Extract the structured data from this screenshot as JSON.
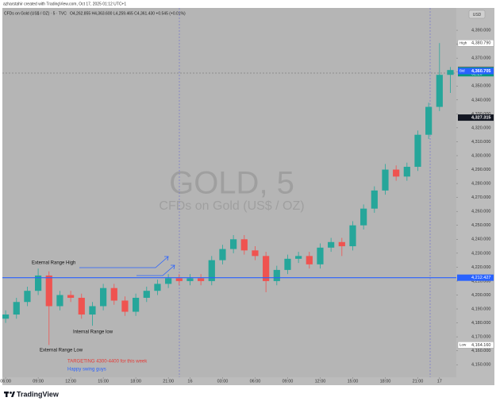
{
  "header": "azharstahir created with TradingView.com, Oct 17, 2025 01:12 UTC+1",
  "currency": "USD",
  "brand": "TradingView",
  "chart_data": {
    "type": "candlestick",
    "legend_title": "CFDs on Gold (US$ / OZ) · 5 · TVC",
    "legend_ohlc": "O4,262.855 H4,363.600 L4,259.465 C4,361.430 +0.545 (+0.01%)",
    "watermark": "GOLD, 5",
    "watermark_subtitle": "CFDs on Gold (US$ / OZ)",
    "up_color": "#26a69a",
    "down_color": "#ef5350",
    "x": [
      -3,
      -2,
      -1,
      0,
      1,
      2,
      3,
      4,
      5,
      6,
      7,
      8,
      9,
      10,
      11,
      12,
      13,
      14,
      15,
      16,
      17,
      18,
      19,
      20,
      21,
      22,
      23,
      24,
      25,
      26,
      27,
      28,
      29,
      30,
      31,
      32,
      33,
      34,
      35,
      36,
      37,
      38
    ],
    "open": [
      4183,
      4186,
      4195,
      4203,
      4214,
      4192,
      4200,
      4198,
      4186,
      4192,
      4205,
      4196,
      4188,
      4198,
      4203,
      4208,
      4212,
      4210,
      4212,
      4210,
      4225,
      4233,
      4240,
      4232,
      4228,
      4210,
      4218,
      4226,
      4228,
      4222,
      4234,
      4238,
      4235,
      4250,
      4262,
      4275,
      4290,
      4285,
      4292,
      4315,
      4335,
      4358
    ],
    "high": [
      4189,
      4198,
      4206,
      4219,
      4217,
      4203,
      4203,
      4201,
      4195,
      4208,
      4208,
      4199,
      4201,
      4206,
      4211,
      4215,
      4215,
      4215,
      4215,
      4228,
      4236,
      4243,
      4243,
      4235,
      4231,
      4221,
      4229,
      4231,
      4231,
      4237,
      4241,
      4241,
      4253,
      4265,
      4278,
      4294,
      4293,
      4295,
      4318,
      4338,
      4380.79,
      4363.6
    ],
    "low": [
      4180,
      4183,
      4192,
      4200,
      4164.16,
      4189,
      4195,
      4183,
      4178,
      4189,
      4193,
      4185,
      4185,
      4195,
      4200,
      4205,
      4207,
      4207,
      4207,
      4207,
      4222,
      4230,
      4229,
      4225,
      4202,
      4207,
      4215,
      4223,
      4219,
      4219,
      4231,
      4228,
      4232,
      4247,
      4259,
      4272,
      4282,
      4282,
      4289,
      4312,
      4332,
      4345
    ],
    "close": [
      4186,
      4195,
      4203,
      4214,
      4192,
      4200,
      4198,
      4186,
      4192,
      4205,
      4196,
      4188,
      4198,
      4203,
      4208,
      4212,
      4210,
      4212,
      4210,
      4225,
      4233,
      4240,
      4232,
      4228,
      4210,
      4218,
      4226,
      4228,
      4222,
      4234,
      4238,
      4235,
      4250,
      4262,
      4275,
      4290,
      4285,
      4292,
      4315,
      4335,
      4358,
      4361.43
    ],
    "xlim": [
      -3.3,
      38.55
    ],
    "ylim": [
      4141,
      4406
    ],
    "xticks": [
      {
        "value": -3,
        "label": "06:00"
      },
      {
        "value": 0,
        "label": "09:00"
      },
      {
        "value": 3,
        "label": "12:00"
      },
      {
        "value": 6,
        "label": "15:00"
      },
      {
        "value": 9,
        "label": "18:00"
      },
      {
        "value": 12,
        "label": "21:00"
      },
      {
        "value": 14,
        "label": "16"
      },
      {
        "value": 17,
        "label": "03:00"
      },
      {
        "value": 20,
        "label": "06:00"
      },
      {
        "value": 23,
        "label": "09:00"
      },
      {
        "value": 26,
        "label": "12:00"
      },
      {
        "value": 29,
        "label": "15:00"
      },
      {
        "value": 32,
        "label": "18:00"
      },
      {
        "value": 35,
        "label": "21:00"
      },
      {
        "value": 37,
        "label": "17"
      }
    ],
    "yticks": [
      {
        "value": 4150,
        "label": "4,150.000"
      },
      {
        "value": 4160,
        "label": "4,160.000"
      },
      {
        "value": 4170,
        "label": "4,170.000"
      },
      {
        "value": 4180,
        "label": "4,180.000"
      },
      {
        "value": 4190,
        "label": "4,190.000"
      },
      {
        "value": 4200,
        "label": "4,200.000"
      },
      {
        "value": 4210,
        "label": "4,210.000"
      },
      {
        "value": 4220,
        "label": "4,220.000"
      },
      {
        "value": 4230,
        "label": "4,230.000"
      },
      {
        "value": 4240,
        "label": "4,240.000"
      },
      {
        "value": 4250,
        "label": "4,250.000"
      },
      {
        "value": 4260,
        "label": "4,260.000"
      },
      {
        "value": 4270,
        "label": "4,270.000"
      },
      {
        "value": 4280,
        "label": "4,280.000"
      },
      {
        "value": 4290,
        "label": "4,290.000"
      },
      {
        "value": 4300,
        "label": "4,300.000"
      },
      {
        "value": 4310,
        "label": "4,310.000"
      },
      {
        "value": 4320,
        "label": "4,320.000"
      },
      {
        "value": 4330,
        "label": "4,330.000"
      },
      {
        "value": 4340,
        "label": "4,340.000"
      },
      {
        "value": 4350,
        "label": "4,350.000"
      },
      {
        "value": 4360,
        "label": "4,360.000"
      },
      {
        "value": 4370,
        "label": "4,370.000"
      },
      {
        "value": 4380,
        "label": "4,380.000"
      },
      {
        "value": 4390,
        "label": "4,390.000"
      }
    ],
    "horizontal_line": {
      "value": 4212.427,
      "label": "4,212.427",
      "color": "#2962ff"
    },
    "markers": [
      {
        "name": "High",
        "value": 4380.79,
        "label": "4,380.790",
        "color": "#ffffff"
      },
      {
        "name": "Ask",
        "value": 4361.635,
        "label": "4,361.635",
        "color": "#f23645"
      },
      {
        "name": "GOLD",
        "value": 4361.43,
        "label": "4,361.430",
        "color": "#089981",
        "countdown": "02:29"
      },
      {
        "name": "Bid",
        "value": 4360.705,
        "label": "4,360.705",
        "color": "#2962ff"
      },
      {
        "value": 4327.315,
        "label": "4,327.315",
        "color": "#131722"
      },
      {
        "name": "Low",
        "value": 4164.16,
        "label": "4,164.160",
        "color": "#ffffff"
      }
    ],
    "annotations": [
      "External Range High",
      "Internal Range low",
      "External Range Low",
      "TARGETING 4300-4400 for this week",
      "Happy swing guys"
    ]
  }
}
